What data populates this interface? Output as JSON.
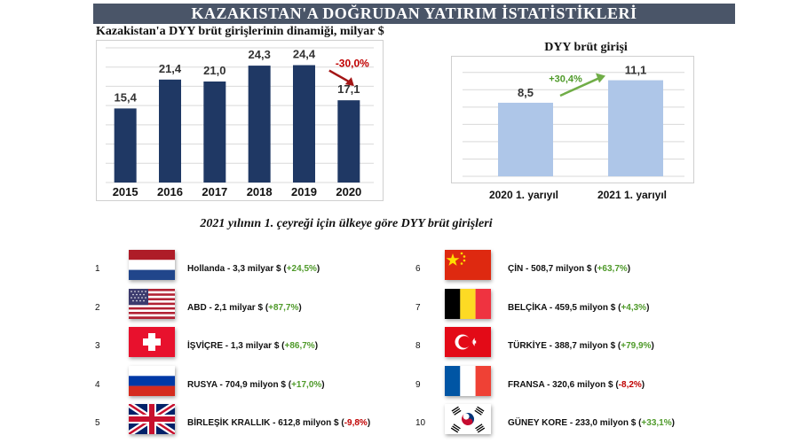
{
  "banner_title": "KAZAKISTAN'A DOĞRUDAN YATIRIM İSTATİSTİKLERİ",
  "colors": {
    "bar_dark": "#1f3864",
    "bar_light": "#aec6e8",
    "positive": "#4f9a2a",
    "negative": "#c00000",
    "banner": "#4a5568"
  },
  "chart_data": [
    {
      "type": "bar",
      "title": "Kazakistan'a DYY brüt girişlerinin dinamiği, milyar $",
      "categories": [
        "2015",
        "2016",
        "2017",
        "2018",
        "2019",
        "2020"
      ],
      "values": [
        15.4,
        21.4,
        21.0,
        24.3,
        24.4,
        17.1
      ],
      "value_labels": [
        "15,4",
        "21,4",
        "21,0",
        "24,3",
        "24,4",
        "17,1"
      ],
      "ylim": [
        0,
        28
      ],
      "grid": true,
      "annotation": "-30,0%"
    },
    {
      "type": "bar",
      "title": "DYY brüt girişi",
      "categories": [
        "2020 1. yarıyıl",
        "2021 1. yarıyıl"
      ],
      "values": [
        8.5,
        11.1
      ],
      "value_labels": [
        "8,5",
        "11,1"
      ],
      "ylim": [
        0,
        13
      ],
      "grid": true,
      "annotation": "+30,4%"
    }
  ],
  "countries_title": "2021 yılının 1. çeyreği için ülkeye göre DYY brüt girişleri",
  "countries": [
    {
      "rank": "1",
      "text": "Hollanda - 3,3 milyar $ (",
      "pct": "+24,5%",
      "sign": "pos",
      "flag": "netherlands-flag-icon"
    },
    {
      "rank": "2",
      "text": "ABD - 2,1 milyar $ (",
      "pct": "+87,7%",
      "sign": "pos",
      "flag": "usa-flag-icon"
    },
    {
      "rank": "3",
      "text": "İŞVİÇRE - 1,3 milyar $ (",
      "pct": "+86,7%",
      "sign": "pos",
      "flag": "switzerland-flag-icon"
    },
    {
      "rank": "4",
      "text": "RUSYA - 704,9 milyon $ (",
      "pct": "+17,0%",
      "sign": "pos",
      "flag": "russia-flag-icon"
    },
    {
      "rank": "5",
      "text": "BİRLEŞİK KRALLIK - 612,8 milyon $ (",
      "pct": "-9,8%",
      "sign": "neg",
      "flag": "uk-flag-icon"
    },
    {
      "rank": "6",
      "text": "ÇİN - 508,7 milyon $ (",
      "pct": "+63,7%",
      "sign": "pos",
      "flag": "china-flag-icon"
    },
    {
      "rank": "7",
      "text": "BELÇİKA - 459,5 milyon $ (",
      "pct": "+4,3%",
      "sign": "pos",
      "flag": "belgium-flag-icon"
    },
    {
      "rank": "8",
      "text": "TÜRKİYE - 388,7 milyon $ (",
      "pct": "+79,9%",
      "sign": "pos",
      "flag": "turkey-flag-icon"
    },
    {
      "rank": "9",
      "text": "FRANSA - 320,6 milyon $ (",
      "pct": "-8,2%",
      "sign": "neg",
      "flag": "france-flag-icon"
    },
    {
      "rank": "10",
      "text": "GÜNEY KORE - 233,0 milyon $ (",
      "pct": "+33,1%",
      "sign": "pos",
      "flag": "south-korea-flag-icon"
    }
  ],
  "close_paren": ")"
}
